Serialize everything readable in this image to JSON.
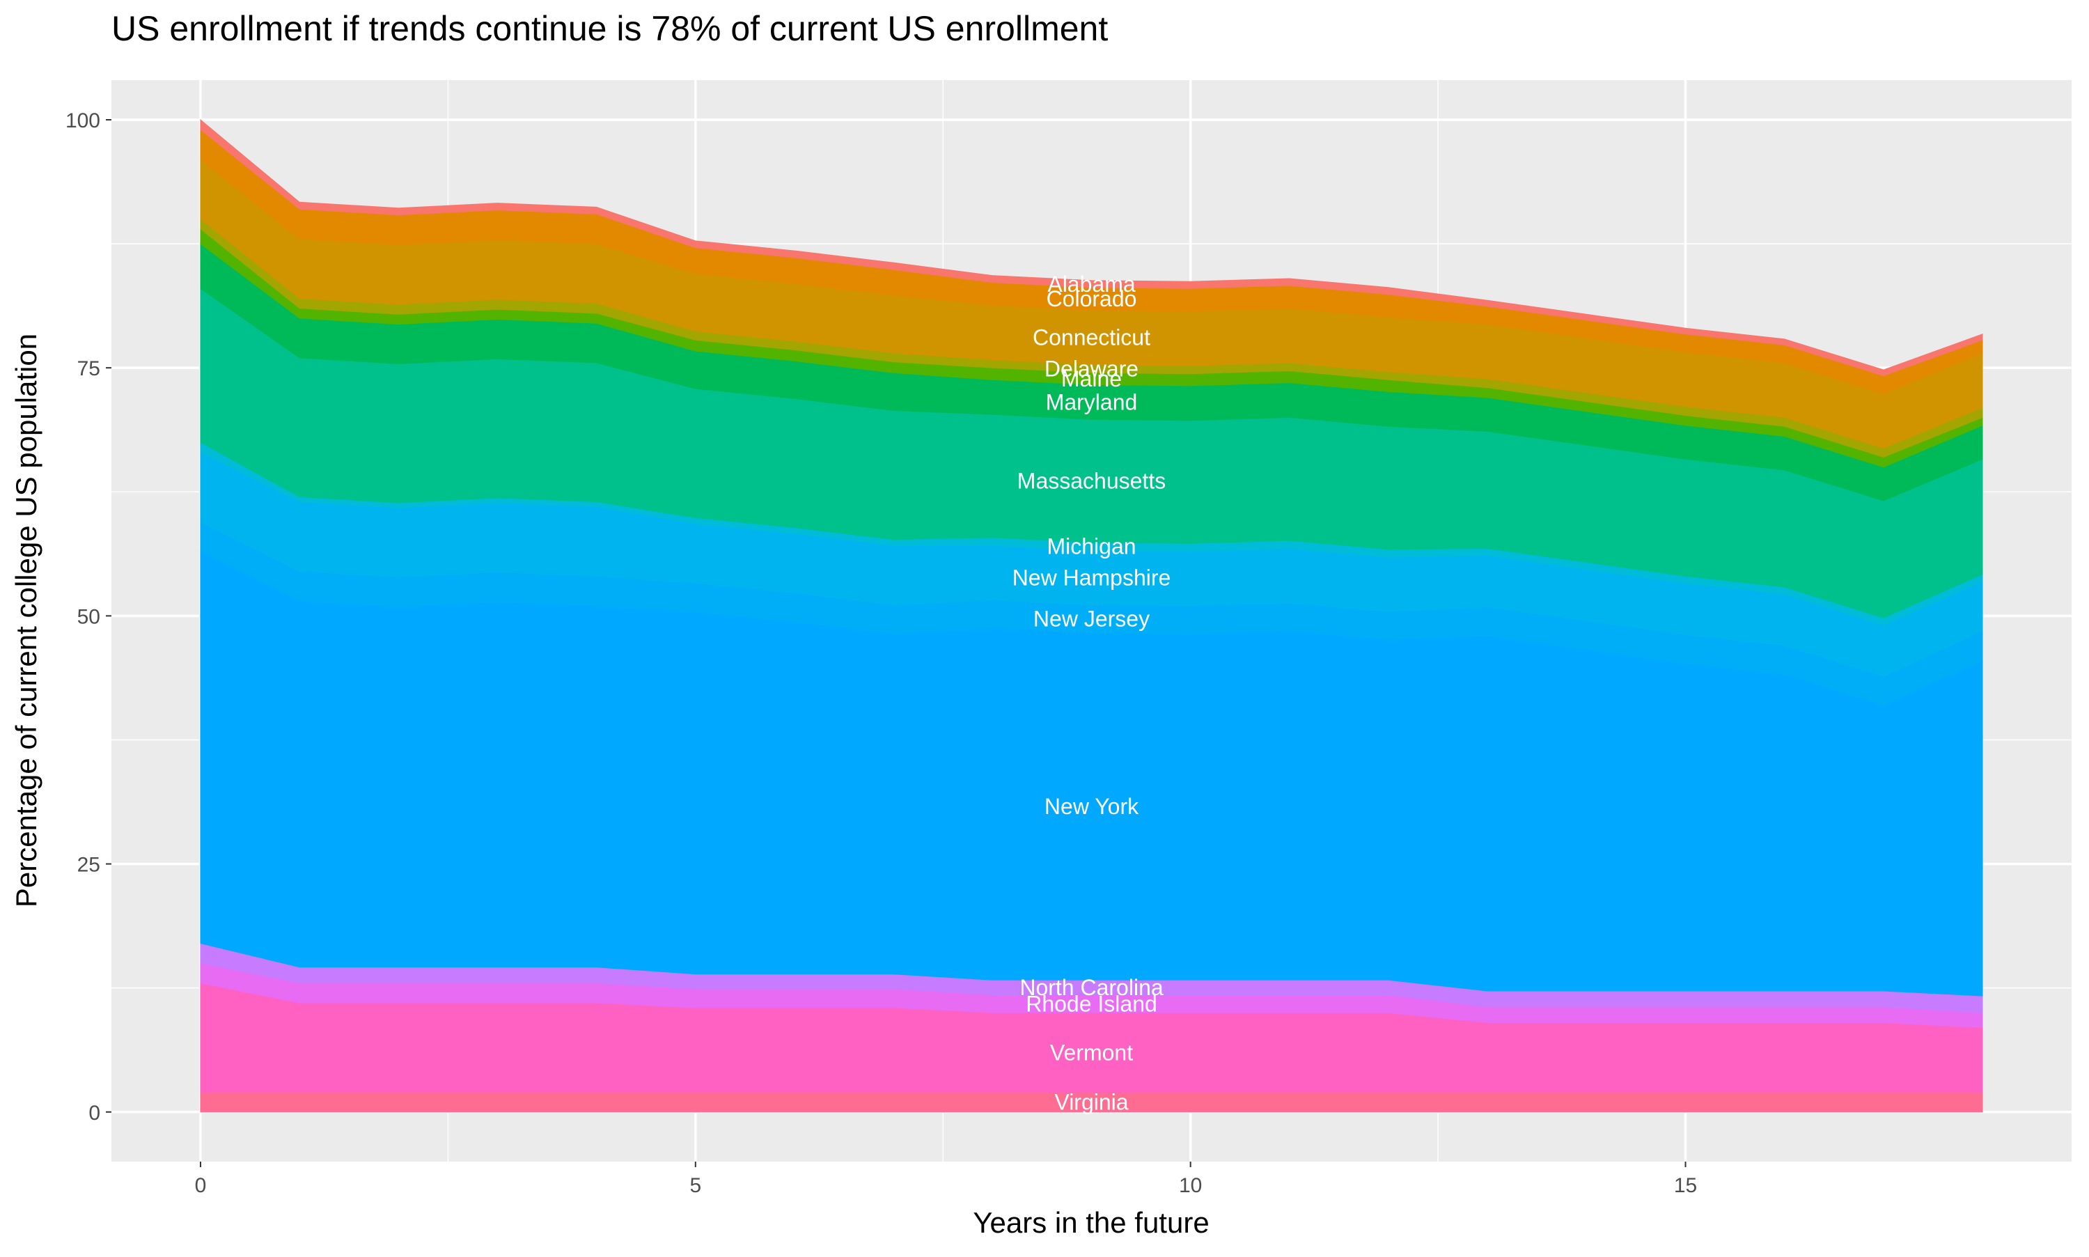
{
  "chart_data": {
    "type": "stacked-area",
    "title": "US enrollment if trends continue is 78% of current US enrollment",
    "x_label": "Years in the future",
    "y_label": "Percentage of current college US population",
    "xlim": [
      -0.9,
      18.9
    ],
    "ylim": [
      -5,
      104
    ],
    "xticks": [
      0,
      5,
      10,
      15
    ],
    "yticks": [
      0,
      25,
      50,
      75,
      100
    ],
    "grid": true,
    "x": [
      0,
      1,
      2,
      3,
      4,
      5,
      6,
      7,
      8,
      9,
      10,
      11,
      12,
      13,
      14,
      15,
      16,
      17,
      18
    ],
    "series": [
      {
        "name": "Virginia",
        "color": "#ff6c91",
        "values": [
          2,
          2,
          2,
          2,
          2,
          2,
          2,
          2,
          2,
          2,
          2,
          2,
          2,
          2,
          2,
          2,
          2,
          2,
          2
        ]
      },
      {
        "name": "Vermont",
        "color": "#ff61c3",
        "values": [
          11,
          9,
          9,
          9,
          9,
          8.5,
          8.5,
          8.5,
          8,
          8,
          8,
          8,
          8,
          7,
          7,
          7,
          7,
          7,
          6.5
        ]
      },
      {
        "name": "Rhode Island",
        "color": "#e76bf3",
        "values": [
          2,
          2,
          2,
          2,
          2,
          1.9,
          1.9,
          1.9,
          1.8,
          1.8,
          1.8,
          1.8,
          1.8,
          1.6,
          1.6,
          1.6,
          1.6,
          1.6,
          1.5
        ]
      },
      {
        "name": "North Carolina",
        "color": "#c77cff",
        "values": [
          2,
          1.6,
          1.6,
          1.6,
          1.6,
          1.5,
          1.5,
          1.5,
          1.5,
          1.5,
          1.5,
          1.5,
          1.5,
          1.6,
          1.6,
          1.6,
          1.6,
          1.6,
          1.7
        ]
      },
      {
        "name": "New York",
        "color": "#00a9ff",
        "values": [
          39.5,
          36.9,
          36.3,
          36.8,
          36.4,
          36.5,
          35.5,
          34.3,
          35.5,
          35,
          34.9,
          35.2,
          34.3,
          35.8,
          34.4,
          33,
          31.9,
          28.8,
          33.8
        ]
      },
      {
        "name": "New Jersey",
        "color": "#00aef8",
        "values": [
          3,
          3,
          3,
          3,
          3,
          2.9,
          2.9,
          2.9,
          2.8,
          2.8,
          2.8,
          2.8,
          2.8,
          2.9,
          2.9,
          2.9,
          2.9,
          2.9,
          3
        ]
      },
      {
        "name": "New Hampshire",
        "color": "#00b4f0",
        "values": [
          7,
          7,
          7,
          7,
          7,
          6,
          6,
          6,
          5.5,
          5.5,
          5.5,
          5.5,
          5.5,
          5.2,
          5.2,
          5.2,
          5.2,
          5.2,
          5
        ]
      },
      {
        "name": "Michigan",
        "color": "#00bcd8",
        "values": [
          1,
          0.5,
          0.5,
          0.5,
          0.5,
          0.6,
          0.6,
          0.6,
          0.8,
          0.8,
          0.8,
          0.8,
          0.8,
          0.7,
          0.7,
          0.7,
          0.7,
          0.7,
          0.7
        ]
      },
      {
        "name": "Massachusetts",
        "color": "#00c08b",
        "values": [
          15.5,
          14,
          14,
          14,
          14,
          13,
          13,
          13,
          12.4,
          12.4,
          12.4,
          12.4,
          12.4,
          11.8,
          11.8,
          11.8,
          11.8,
          11.8,
          11.6
        ]
      },
      {
        "name": "Maryland",
        "color": "#00ba5a",
        "values": [
          4.5,
          4,
          4,
          4,
          4,
          3.8,
          3.8,
          3.8,
          3.5,
          3.5,
          3.5,
          3.5,
          3.5,
          3.4,
          3.4,
          3.4,
          3.4,
          3.4,
          3.4
        ]
      },
      {
        "name": "Maine",
        "color": "#53b400",
        "values": [
          1.5,
          1,
          1,
          1,
          1,
          1.1,
          1.1,
          1.1,
          1.2,
          1.2,
          1.2,
          1.2,
          1.2,
          1,
          1,
          1,
          1,
          1,
          0.8
        ]
      },
      {
        "name": "Delaware",
        "color": "#a3a500",
        "values": [
          1,
          1,
          1,
          1,
          1,
          0.9,
          0.9,
          0.9,
          0.8,
          0.8,
          0.8,
          0.8,
          0.8,
          0.9,
          0.9,
          0.9,
          0.9,
          0.9,
          1
        ]
      },
      {
        "name": "Connecticut",
        "color": "#d09400",
        "values": [
          6,
          6,
          6,
          6,
          6,
          5.8,
          5.8,
          5.8,
          5.5,
          5.5,
          5.5,
          5.5,
          5.5,
          5.5,
          5.5,
          5.5,
          5.5,
          5.5,
          5.5
        ]
      },
      {
        "name": "Colorado",
        "color": "#e38900",
        "values": [
          3,
          3,
          3,
          3,
          3,
          2.6,
          2.6,
          2.6,
          2.3,
          2.3,
          2.3,
          2.3,
          2.3,
          1.8,
          1.8,
          1.8,
          1.8,
          1.8,
          1.3
        ]
      },
      {
        "name": "Alabama",
        "color": "#f8766d",
        "values": [
          1,
          0.7,
          0.7,
          0.7,
          0.7,
          0.7,
          0.7,
          0.7,
          0.7,
          0.7,
          0.7,
          0.7,
          0.7,
          0.6,
          0.6,
          0.6,
          0.6,
          0.6,
          0.6
        ]
      }
    ]
  }
}
